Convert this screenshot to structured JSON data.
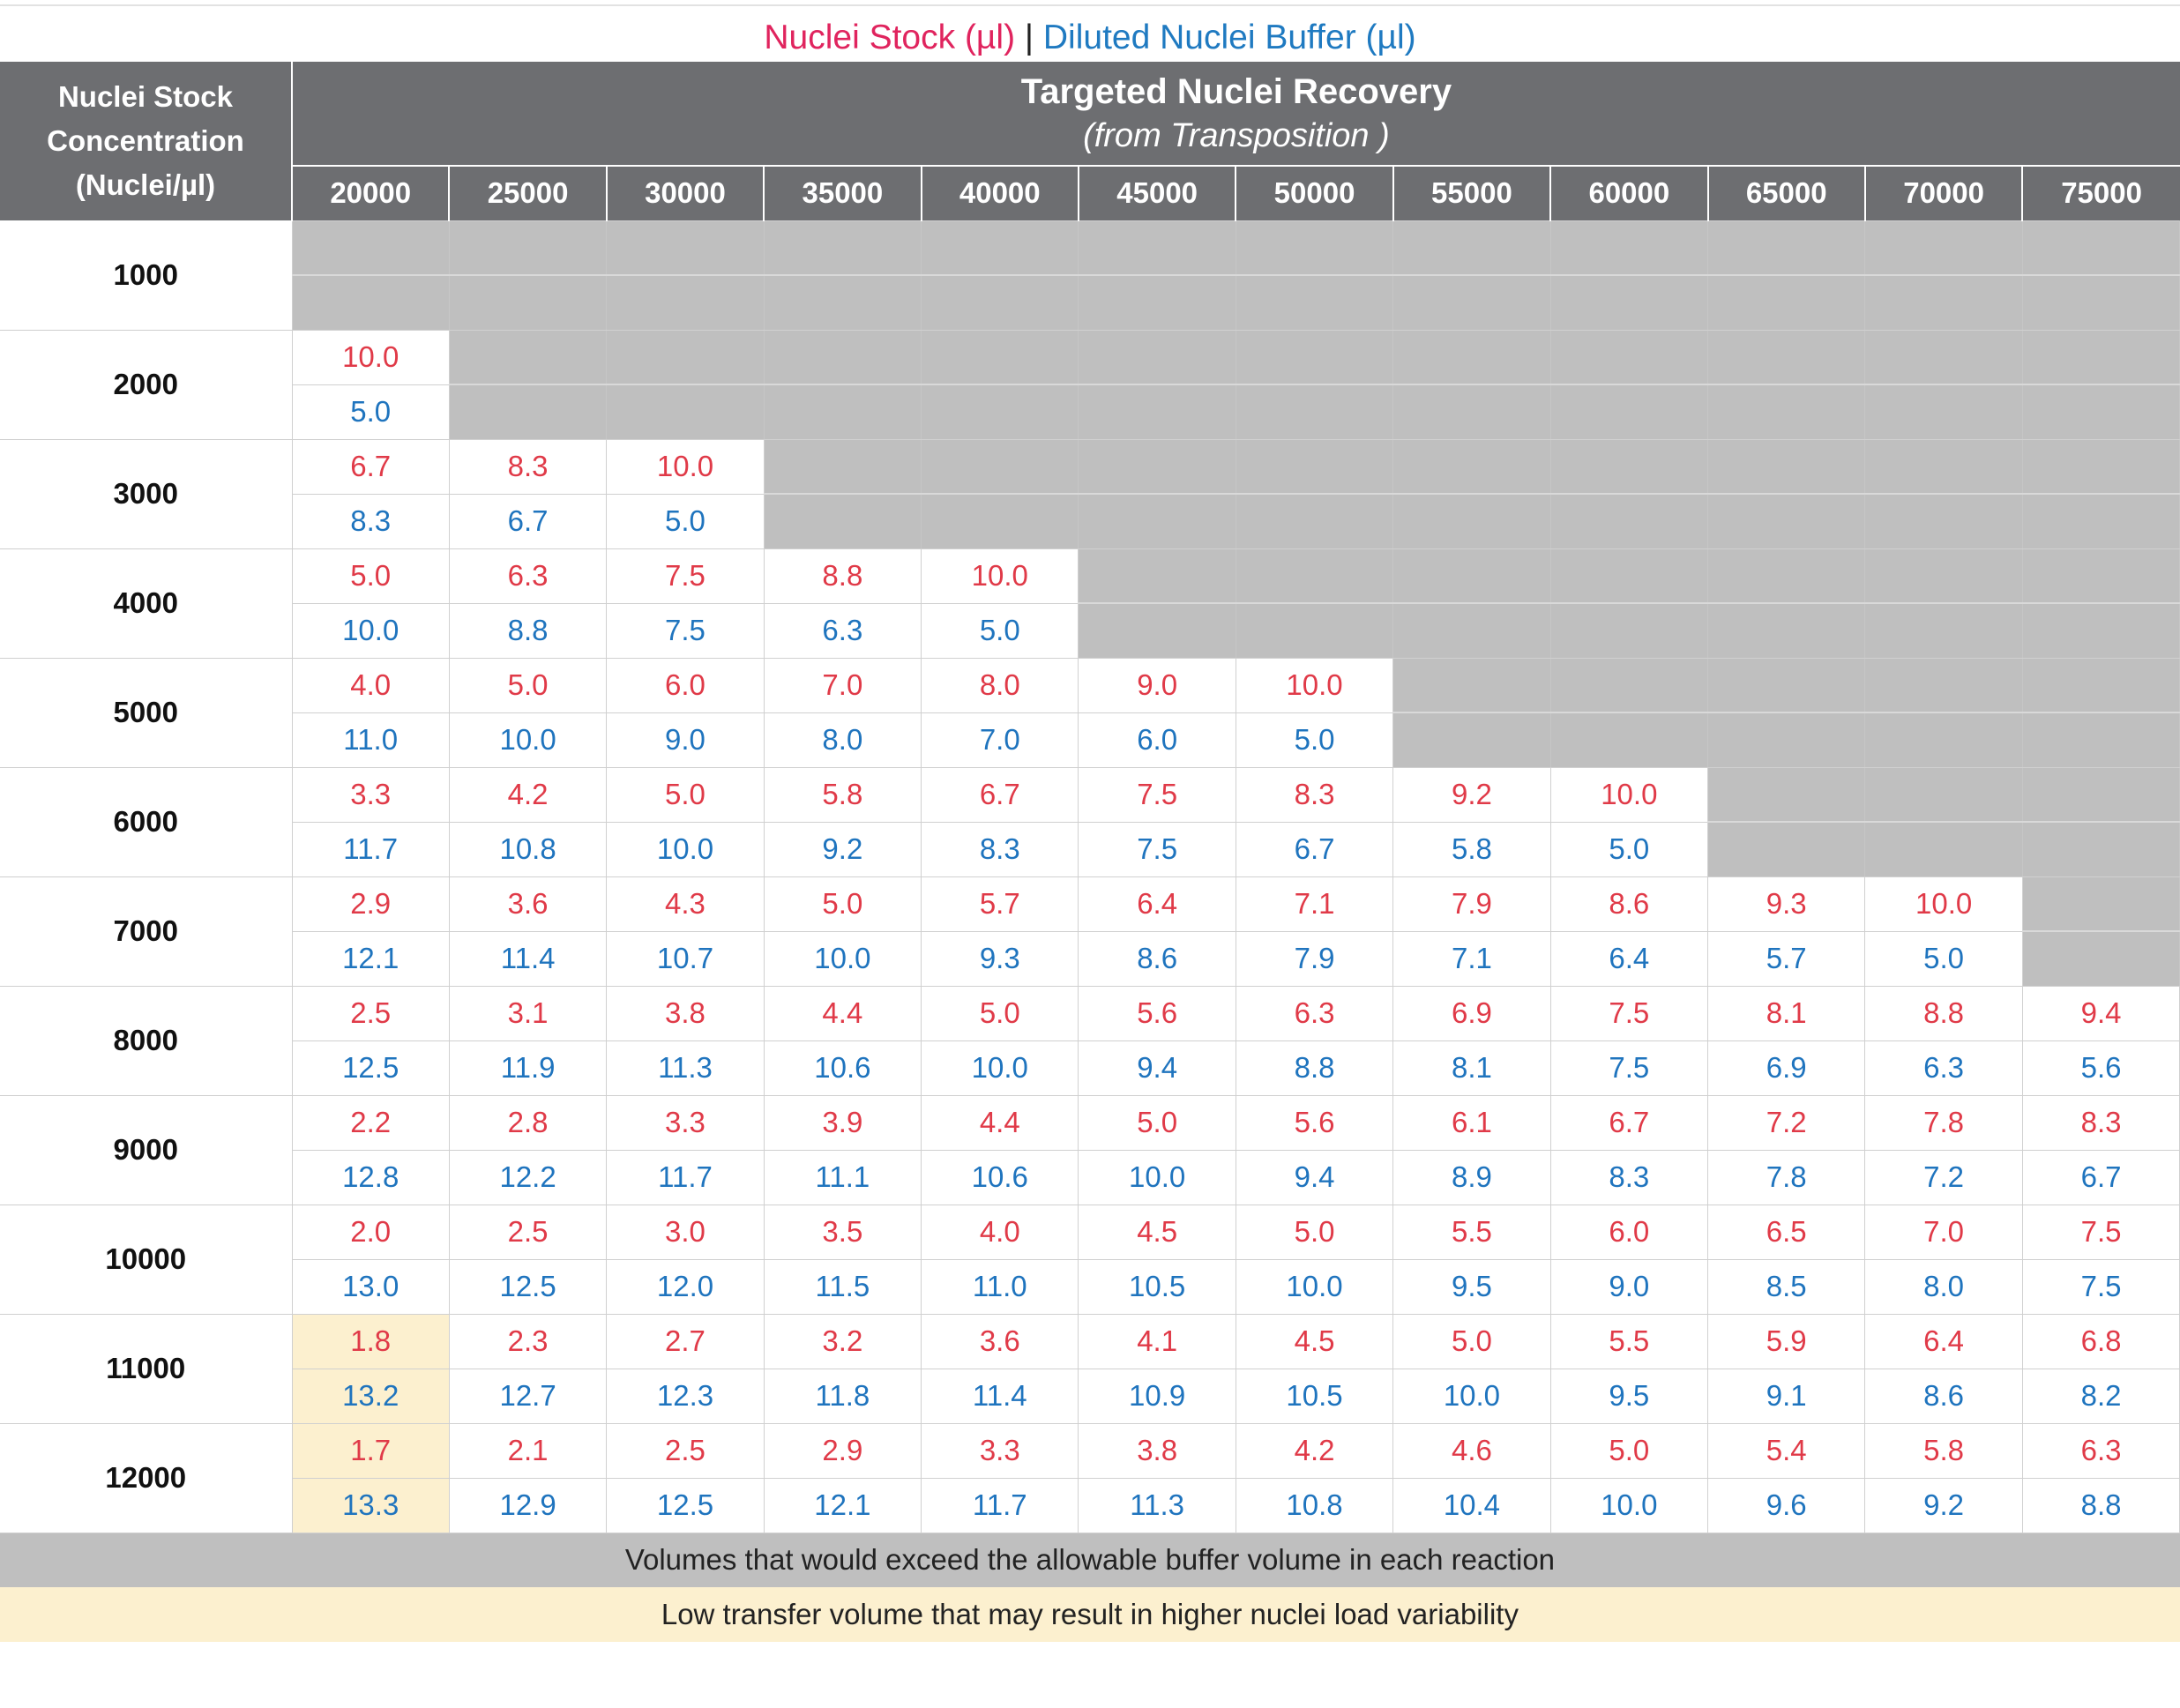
{
  "title": {
    "stock_label": "Nuclei Stock (µl)",
    "separator": "|",
    "buffer_label": "Diluted Nuclei Buffer (µl)"
  },
  "header": {
    "conc_line1": "Nuclei Stock",
    "conc_line2": "Concentration",
    "conc_line3": "(Nuclei/µl)",
    "recovery_title": "Targeted Nuclei Recovery",
    "recovery_subtitle": "(from Transposition )",
    "columns": [
      "20000",
      "25000",
      "30000",
      "35000",
      "40000",
      "45000",
      "50000",
      "55000",
      "60000",
      "65000",
      "70000",
      "75000"
    ]
  },
  "rows": [
    {
      "conc": "1000",
      "stock": [],
      "buffer": []
    },
    {
      "conc": "2000",
      "stock": [
        "10.0"
      ],
      "buffer": [
        "5.0"
      ]
    },
    {
      "conc": "3000",
      "stock": [
        "6.7",
        "8.3",
        "10.0"
      ],
      "buffer": [
        "8.3",
        "6.7",
        "5.0"
      ]
    },
    {
      "conc": "4000",
      "stock": [
        "5.0",
        "6.3",
        "7.5",
        "8.8",
        "10.0"
      ],
      "buffer": [
        "10.0",
        "8.8",
        "7.5",
        "6.3",
        "5.0"
      ]
    },
    {
      "conc": "5000",
      "stock": [
        "4.0",
        "5.0",
        "6.0",
        "7.0",
        "8.0",
        "9.0",
        "10.0"
      ],
      "buffer": [
        "11.0",
        "10.0",
        "9.0",
        "8.0",
        "7.0",
        "6.0",
        "5.0"
      ]
    },
    {
      "conc": "6000",
      "stock": [
        "3.3",
        "4.2",
        "5.0",
        "5.8",
        "6.7",
        "7.5",
        "8.3",
        "9.2",
        "10.0"
      ],
      "buffer": [
        "11.7",
        "10.8",
        "10.0",
        "9.2",
        "8.3",
        "7.5",
        "6.7",
        "5.8",
        "5.0"
      ]
    },
    {
      "conc": "7000",
      "stock": [
        "2.9",
        "3.6",
        "4.3",
        "5.0",
        "5.7",
        "6.4",
        "7.1",
        "7.9",
        "8.6",
        "9.3",
        "10.0"
      ],
      "buffer": [
        "12.1",
        "11.4",
        "10.7",
        "10.0",
        "9.3",
        "8.6",
        "7.9",
        "7.1",
        "6.4",
        "5.7",
        "5.0"
      ]
    },
    {
      "conc": "8000",
      "stock": [
        "2.5",
        "3.1",
        "3.8",
        "4.4",
        "5.0",
        "5.6",
        "6.3",
        "6.9",
        "7.5",
        "8.1",
        "8.8",
        "9.4"
      ],
      "buffer": [
        "12.5",
        "11.9",
        "11.3",
        "10.6",
        "10.0",
        "9.4",
        "8.8",
        "8.1",
        "7.5",
        "6.9",
        "6.3",
        "5.6"
      ]
    },
    {
      "conc": "9000",
      "stock": [
        "2.2",
        "2.8",
        "3.3",
        "3.9",
        "4.4",
        "5.0",
        "5.6",
        "6.1",
        "6.7",
        "7.2",
        "7.8",
        "8.3"
      ],
      "buffer": [
        "12.8",
        "12.2",
        "11.7",
        "11.1",
        "10.6",
        "10.0",
        "9.4",
        "8.9",
        "8.3",
        "7.8",
        "7.2",
        "6.7"
      ]
    },
    {
      "conc": "10000",
      "stock": [
        "2.0",
        "2.5",
        "3.0",
        "3.5",
        "4.0",
        "4.5",
        "5.0",
        "5.5",
        "6.0",
        "6.5",
        "7.0",
        "7.5"
      ],
      "buffer": [
        "13.0",
        "12.5",
        "12.0",
        "11.5",
        "11.0",
        "10.5",
        "10.0",
        "9.5",
        "9.0",
        "8.5",
        "8.0",
        "7.5"
      ]
    },
    {
      "conc": "11000",
      "low_first": true,
      "stock": [
        "1.8",
        "2.3",
        "2.7",
        "3.2",
        "3.6",
        "4.1",
        "4.5",
        "5.0",
        "5.5",
        "5.9",
        "6.4",
        "6.8"
      ],
      "buffer": [
        "13.2",
        "12.7",
        "12.3",
        "11.8",
        "11.4",
        "10.9",
        "10.5",
        "10.0",
        "9.5",
        "9.1",
        "8.6",
        "8.2"
      ]
    },
    {
      "conc": "12000",
      "low_first": true,
      "stock": [
        "1.7",
        "2.1",
        "2.5",
        "2.9",
        "3.3",
        "3.8",
        "4.2",
        "4.6",
        "5.0",
        "5.4",
        "5.8",
        "6.3"
      ],
      "buffer": [
        "13.3",
        "12.9",
        "12.5",
        "12.1",
        "11.7",
        "11.3",
        "10.8",
        "10.4",
        "10.0",
        "9.6",
        "9.2",
        "8.8"
      ]
    }
  ],
  "legend": {
    "exceed": "Volumes that would exceed the allowable buffer volume in each reaction",
    "low": "Low transfer volume that may result in higher nuclei load variability"
  },
  "colors": {
    "stock": "#e03a48",
    "buffer": "#1f74be",
    "header_bg": "#6d6e71",
    "exceed_bg": "#bfbfbf",
    "low_bg": "#fcf0cf"
  }
}
